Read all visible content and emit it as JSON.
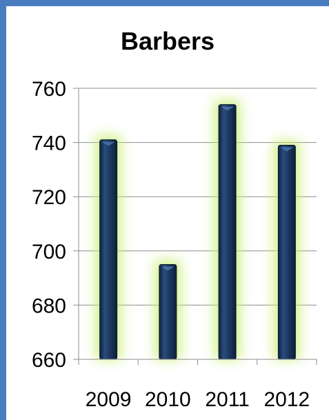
{
  "chart_data": {
    "type": "bar",
    "title": "Barbers",
    "categories": [
      "2009",
      "2010",
      "2011",
      "2012"
    ],
    "values": [
      741,
      695,
      754,
      739
    ],
    "ylim": [
      660,
      760
    ],
    "yticks": [
      660,
      680,
      700,
      720,
      740,
      760
    ],
    "xlabel": "",
    "ylabel": "",
    "grid": true,
    "legend": "none",
    "colors": {
      "bar": "#1a3358",
      "bar_highlight": "#4f77ad",
      "glow": "#c8ee6e",
      "grid": "#8c8c8c",
      "frame": "#4a7dc0",
      "text": "#000000"
    }
  }
}
